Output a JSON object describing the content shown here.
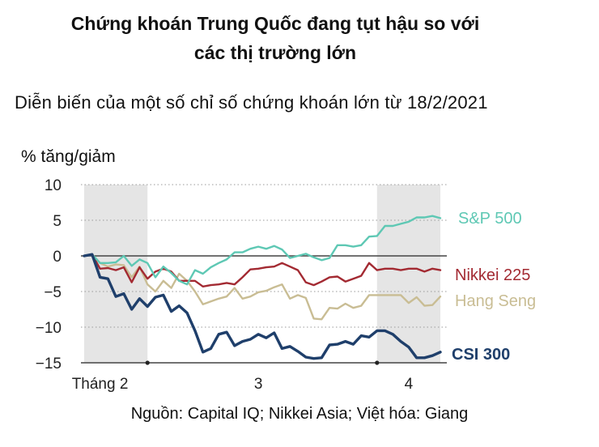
{
  "header": {
    "title_line1": "Chứng khoán Trung Quốc đang tụt hậu so với",
    "title_line2": "các thị trường lớn",
    "subtitle": "Diễn biến của một số chỉ số chứng khoán lớn từ 18/2/2021",
    "ylabel": "% tăng/giảm"
  },
  "footer": {
    "source": "Nguồn: Capital IQ; Nikkei Asia; Việt hóa: Giang"
  },
  "chart_data": {
    "type": "line",
    "ylim": [
      -15,
      10
    ],
    "y_ticks": [
      10,
      5,
      0,
      -5,
      -10,
      -15
    ],
    "y_tick_labels": [
      "10",
      "5",
      "0",
      "−5",
      "−10",
      "−15"
    ],
    "x_range": [
      0,
      45
    ],
    "x_ticks": [
      {
        "x": 2,
        "label": "Tháng 2"
      },
      {
        "x": 22,
        "label": "3"
      },
      {
        "x": 41,
        "label": "4"
      }
    ],
    "shaded_ranges": [
      [
        0,
        8
      ],
      [
        37,
        45
      ]
    ],
    "dots": [
      8,
      37
    ],
    "colors": {
      "sp500": "#5ec8b4",
      "nikkei": "#a32a32",
      "hangseng": "#c9bd94",
      "csi300": "#1f3f6b",
      "shade": "#e5e5e5"
    },
    "series": [
      {
        "key": "sp500",
        "name": "S&P 500",
        "values": [
          0,
          0.2,
          -1,
          -1,
          -0.9,
          0,
          -1.4,
          -0.5,
          -1,
          -3,
          -1.5,
          -2.4,
          -3.5,
          -4,
          -2,
          -2.5,
          -1.6,
          -1,
          -0.5,
          0.5,
          0.5,
          1,
          1.3,
          1,
          1.4,
          0.9,
          -0.3,
          0,
          0.3,
          -0.2,
          -0.6,
          -0.3,
          1.5,
          1.5,
          1.3,
          1.5,
          2.7,
          2.8,
          4.2,
          4.2,
          4.5,
          4.8,
          5.4,
          5.4,
          5.6,
          5.3
        ]
      },
      {
        "key": "nikkei",
        "name": "Nikkei 225",
        "values": [
          0,
          0.2,
          -1.8,
          -1.7,
          -2,
          -1.6,
          -3.7,
          -1.6,
          -3.2,
          -2.2,
          -1.8,
          -2.2,
          -3.5,
          -3.5,
          -3.5,
          -4.3,
          -4.1,
          -4,
          -3.8,
          -4,
          -3,
          -1.9,
          -1.8,
          -1.6,
          -1.5,
          -1,
          -1.5,
          -2,
          -3.7,
          -4.1,
          -3.6,
          -3,
          -2.9,
          -3.6,
          -3.2,
          -2.8,
          -1,
          -2,
          -1.8,
          -1.8,
          -2,
          -1.8,
          -1.8,
          -2.2,
          -1.8,
          -2
        ]
      },
      {
        "key": "hangseng",
        "name": "Hang Seng",
        "values": [
          0,
          0.2,
          -1,
          -1.5,
          -1.2,
          -1.3,
          -3,
          -1.5,
          -4,
          -5,
          -3.5,
          -4.5,
          -2.5,
          -3.5,
          -5,
          -6.8,
          -6.4,
          -6,
          -5.7,
          -4.5,
          -6,
          -5.7,
          -5.1,
          -4.9,
          -4.4,
          -4,
          -6,
          -5.5,
          -5.9,
          -8.8,
          -8.9,
          -7.3,
          -7.4,
          -6.7,
          -7.3,
          -7,
          -5.5,
          -5.5,
          -5.5,
          -5.5,
          -5.5,
          -6.6,
          -5.8,
          -7,
          -6.9,
          -5.7
        ]
      },
      {
        "key": "csi300",
        "name": "CSI 300",
        "values": [
          0,
          0.2,
          -3,
          -3.2,
          -5.7,
          -5.3,
          -7.5,
          -6,
          -7.1,
          -5.8,
          -5.5,
          -7.8,
          -7,
          -8,
          -10.5,
          -13.5,
          -13,
          -11,
          -10.7,
          -12.6,
          -12,
          -11.7,
          -11,
          -11.5,
          -10.8,
          -13,
          -12.7,
          -13.4,
          -14.2,
          -14.4,
          -14.3,
          -12.5,
          -12.4,
          -12,
          -12.4,
          -11.2,
          -11.4,
          -10.5,
          -10.5,
          -11,
          -12,
          -12.8,
          -14.3,
          -14.3,
          -14,
          -13.5
        ]
      }
    ]
  }
}
